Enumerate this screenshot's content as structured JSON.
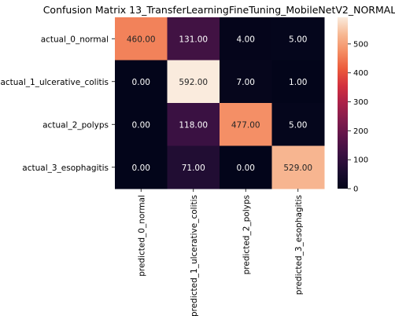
{
  "chart_data": {
    "type": "heatmap",
    "title": "Confusion Matrix 13_TransferLearningFineTuning_MobileNetV2_NORMAL",
    "rows": [
      "actual_0_normal",
      "actual_1_ulcerative_colitis",
      "actual_2_polyps",
      "actual_3_esophagitis"
    ],
    "columns": [
      "predicted_0_normal",
      "predicted_1_ulcerative_colitis",
      "predicted_2_polyps",
      "predicted_3_esophagitis"
    ],
    "values": [
      [
        460,
        131,
        4,
        5
      ],
      [
        0,
        592,
        7,
        1
      ],
      [
        0,
        118,
        477,
        5
      ],
      [
        0,
        71,
        0,
        529
      ]
    ],
    "value_format": "2 decimal places",
    "colormap": "rocket",
    "colorbar": {
      "range": [
        0,
        592
      ],
      "ticks": [
        0,
        100,
        200,
        300,
        400,
        500
      ]
    },
    "xlabel": "",
    "ylabel": ""
  }
}
